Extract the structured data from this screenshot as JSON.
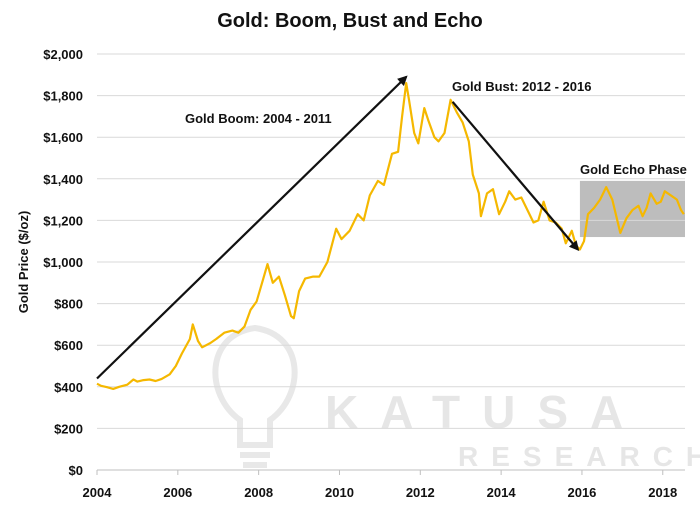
{
  "chart_data": {
    "type": "line",
    "title": "Gold: Boom, Bust and Echo",
    "ylabel": "Gold Price ($/oz)",
    "xlabel": "",
    "xlim": [
      2004,
      2018.55
    ],
    "ylim": [
      0,
      2000
    ],
    "x_ticks": [
      2004,
      2006,
      2008,
      2010,
      2012,
      2014,
      2016,
      2018
    ],
    "x_tick_labels": [
      "2004",
      "2006",
      "2008",
      "2010",
      "2012",
      "2014",
      "2016",
      "2018"
    ],
    "y_ticks": [
      0,
      200,
      400,
      600,
      800,
      1000,
      1200,
      1400,
      1600,
      1800,
      2000
    ],
    "y_tick_labels": [
      "$0",
      "$200",
      "$400",
      "$600",
      "$800",
      "$1,000",
      "$1,200",
      "$1,400",
      "$1,600",
      "$1,800",
      "$2,000"
    ],
    "grid": "horizontal",
    "line_color": "#F5B800",
    "series": [
      {
        "points": [
          [
            2004.0,
            415
          ],
          [
            2004.1,
            405
          ],
          [
            2004.25,
            398
          ],
          [
            2004.4,
            390
          ],
          [
            2004.55,
            400
          ],
          [
            2004.75,
            410
          ],
          [
            2004.9,
            435
          ],
          [
            2005.0,
            425
          ],
          [
            2005.15,
            432
          ],
          [
            2005.3,
            435
          ],
          [
            2005.45,
            428
          ],
          [
            2005.6,
            438
          ],
          [
            2005.8,
            460
          ],
          [
            2005.95,
            500
          ],
          [
            2006.1,
            560
          ],
          [
            2006.3,
            630
          ],
          [
            2006.37,
            700
          ],
          [
            2006.5,
            620
          ],
          [
            2006.6,
            590
          ],
          [
            2006.8,
            610
          ],
          [
            2006.95,
            630
          ],
          [
            2007.15,
            660
          ],
          [
            2007.35,
            670
          ],
          [
            2007.5,
            660
          ],
          [
            2007.65,
            690
          ],
          [
            2007.8,
            770
          ],
          [
            2007.95,
            810
          ],
          [
            2008.1,
            910
          ],
          [
            2008.22,
            990
          ],
          [
            2008.35,
            900
          ],
          [
            2008.5,
            930
          ],
          [
            2008.65,
            840
          ],
          [
            2008.8,
            740
          ],
          [
            2008.87,
            730
          ],
          [
            2009.0,
            860
          ],
          [
            2009.15,
            920
          ],
          [
            2009.35,
            930
          ],
          [
            2009.5,
            930
          ],
          [
            2009.7,
            1000
          ],
          [
            2009.92,
            1160
          ],
          [
            2010.05,
            1110
          ],
          [
            2010.25,
            1150
          ],
          [
            2010.45,
            1230
          ],
          [
            2010.6,
            1200
          ],
          [
            2010.75,
            1320
          ],
          [
            2010.95,
            1390
          ],
          [
            2011.1,
            1370
          ],
          [
            2011.3,
            1520
          ],
          [
            2011.45,
            1530
          ],
          [
            2011.55,
            1700
          ],
          [
            2011.65,
            1860
          ],
          [
            2011.72,
            1780
          ],
          [
            2011.85,
            1620
          ],
          [
            2011.95,
            1570
          ],
          [
            2012.1,
            1740
          ],
          [
            2012.2,
            1680
          ],
          [
            2012.35,
            1600
          ],
          [
            2012.45,
            1580
          ],
          [
            2012.6,
            1620
          ],
          [
            2012.75,
            1780
          ],
          [
            2012.9,
            1720
          ],
          [
            2013.05,
            1670
          ],
          [
            2013.2,
            1580
          ],
          [
            2013.3,
            1420
          ],
          [
            2013.45,
            1330
          ],
          [
            2013.5,
            1220
          ],
          [
            2013.65,
            1330
          ],
          [
            2013.8,
            1350
          ],
          [
            2013.95,
            1230
          ],
          [
            2014.1,
            1290
          ],
          [
            2014.2,
            1340
          ],
          [
            2014.35,
            1300
          ],
          [
            2014.5,
            1310
          ],
          [
            2014.65,
            1250
          ],
          [
            2014.8,
            1190
          ],
          [
            2014.92,
            1200
          ],
          [
            2015.05,
            1290
          ],
          [
            2015.2,
            1200
          ],
          [
            2015.35,
            1190
          ],
          [
            2015.5,
            1160
          ],
          [
            2015.6,
            1090
          ],
          [
            2015.75,
            1150
          ],
          [
            2015.85,
            1080
          ],
          [
            2015.95,
            1060
          ],
          [
            2016.05,
            1100
          ],
          [
            2016.15,
            1230
          ],
          [
            2016.3,
            1260
          ],
          [
            2016.45,
            1300
          ],
          [
            2016.6,
            1360
          ],
          [
            2016.75,
            1300
          ],
          [
            2016.95,
            1140
          ],
          [
            2017.1,
            1210
          ],
          [
            2017.25,
            1250
          ],
          [
            2017.4,
            1270
          ],
          [
            2017.5,
            1220
          ],
          [
            2017.6,
            1260
          ],
          [
            2017.7,
            1330
          ],
          [
            2017.85,
            1280
          ],
          [
            2017.95,
            1290
          ],
          [
            2018.05,
            1340
          ],
          [
            2018.2,
            1320
          ],
          [
            2018.35,
            1300
          ],
          [
            2018.45,
            1250
          ],
          [
            2018.52,
            1230
          ]
        ]
      }
    ],
    "annotations": [
      {
        "text": "Gold Boom: 2004 - 2011",
        "arrow_from": [
          2004.0,
          440
        ],
        "arrow_to": [
          2011.65,
          1890
        ]
      },
      {
        "text": "Gold Bust: 2012 - 2016",
        "arrow_from": [
          2012.8,
          1770
        ],
        "arrow_to": [
          2015.9,
          1060
        ]
      },
      {
        "text": "Gold Echo Phase",
        "box_x": [
          2015.95,
          2018.55
        ],
        "box_y": [
          1120,
          1390
        ],
        "box_color": "#bdbdbd"
      }
    ],
    "watermark": {
      "title": "KATUSA",
      "subtitle": "RESEARCH"
    }
  }
}
